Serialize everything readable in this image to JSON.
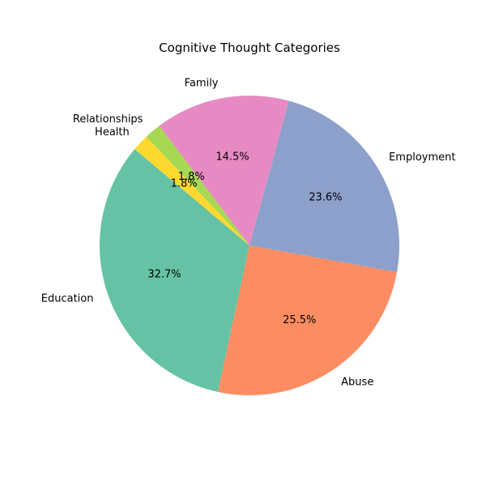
{
  "chart_data": {
    "type": "pie",
    "title": "Cognitive Thought Categories",
    "start_angle_deg": 140,
    "direction": "counterclockwise",
    "slices": [
      {
        "label": "Education",
        "value": 32.7,
        "pct_label": "32.7%",
        "color": "#66c2a5"
      },
      {
        "label": "Abuse",
        "value": 25.5,
        "pct_label": "25.5%",
        "color": "#fc8d62"
      },
      {
        "label": "Employment",
        "value": 23.6,
        "pct_label": "23.6%",
        "color": "#8da0cb"
      },
      {
        "label": "Family",
        "value": 14.5,
        "pct_label": "14.5%",
        "color": "#e78ac3"
      },
      {
        "label": "Relationships",
        "value": 1.8,
        "pct_label": "1.8%",
        "color": "#a6d854"
      },
      {
        "label": "Health",
        "value": 1.8,
        "pct_label": "1.8%",
        "color": "#ffd92f"
      }
    ]
  }
}
